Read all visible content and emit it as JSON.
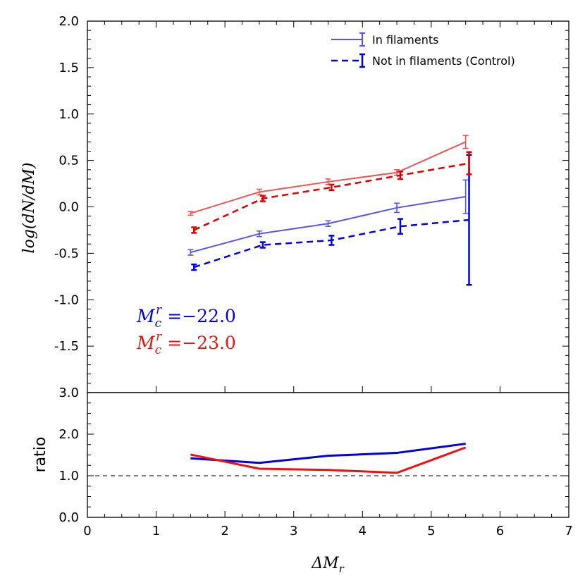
{
  "chart_data": [
    {
      "type": "line",
      "panel": "main",
      "ylabel": "log(dN/dM)",
      "ylim": [
        -2.0,
        2.0
      ],
      "yticks": [
        "-1.5",
        "-1.0",
        "-0.5",
        "0.0",
        "0.5",
        "1.0",
        "1.5",
        "2.0"
      ],
      "x": [
        1.5,
        2.5,
        3.5,
        4.5,
        5.5
      ],
      "series": [
        {
          "name": "In filaments",
          "group": "Mc=-22.0",
          "color": "#5555ee",
          "style": "solid",
          "values": [
            -0.49,
            -0.29,
            -0.18,
            -0.01,
            0.11
          ],
          "errors": [
            0.03,
            0.03,
            0.03,
            0.05,
            0.18
          ]
        },
        {
          "name": "Not in filaments (Control)",
          "group": "Mc=-22.0",
          "color": "#0000dd",
          "style": "dashed",
          "values": [
            -0.65,
            -0.41,
            -0.36,
            -0.21,
            -0.14
          ],
          "errors": [
            0.03,
            0.03,
            0.05,
            0.08,
            0.7
          ]
        },
        {
          "name": "In filaments",
          "group": "Mc=-23.0",
          "color": "#ee5555",
          "style": "solid",
          "values": [
            -0.07,
            0.16,
            0.27,
            0.37,
            0.7
          ],
          "errors": [
            0.02,
            0.03,
            0.03,
            0.03,
            0.07
          ]
        },
        {
          "name": "Not in filaments (Control)",
          "group": "Mc=-23.0",
          "color": "#dd0000",
          "style": "dashed",
          "values": [
            -0.25,
            0.09,
            0.21,
            0.34,
            0.47
          ],
          "errors": [
            0.03,
            0.03,
            0.03,
            0.04,
            0.12
          ]
        }
      ],
      "legend": {
        "position": "top-right",
        "entries": [
          "In filaments",
          "Not in filaments (Control)"
        ]
      },
      "annotations": [
        {
          "base": "M",
          "sub": "c",
          "sup": "r",
          "value": "=−22.0",
          "color": "#0000dd"
        },
        {
          "base": "M",
          "sub": "c",
          "sup": "r",
          "value": "=−23.0",
          "color": "#ee1111"
        }
      ]
    },
    {
      "type": "line",
      "panel": "ratio",
      "ylabel": "ratio",
      "xlabel": "ΔM",
      "xlabel_sub": "r",
      "xlim": [
        0,
        7
      ],
      "xticks": [
        "0",
        "1",
        "2",
        "3",
        "4",
        "5",
        "6",
        "7"
      ],
      "ylim": [
        0.0,
        3.0
      ],
      "yticks": [
        "0.0",
        "1.0",
        "2.0",
        "3.0"
      ],
      "x": [
        1.5,
        2.5,
        3.5,
        4.5,
        5.5
      ],
      "reference_line": 1.0,
      "series": [
        {
          "name": "Mc=-22.0 ratio",
          "color": "#0000dd",
          "values": [
            1.42,
            1.31,
            1.48,
            1.55,
            1.77
          ]
        },
        {
          "name": "Mc=-23.0 ratio",
          "color": "#ee1111",
          "values": [
            1.51,
            1.17,
            1.14,
            1.07,
            1.68
          ]
        }
      ]
    }
  ]
}
